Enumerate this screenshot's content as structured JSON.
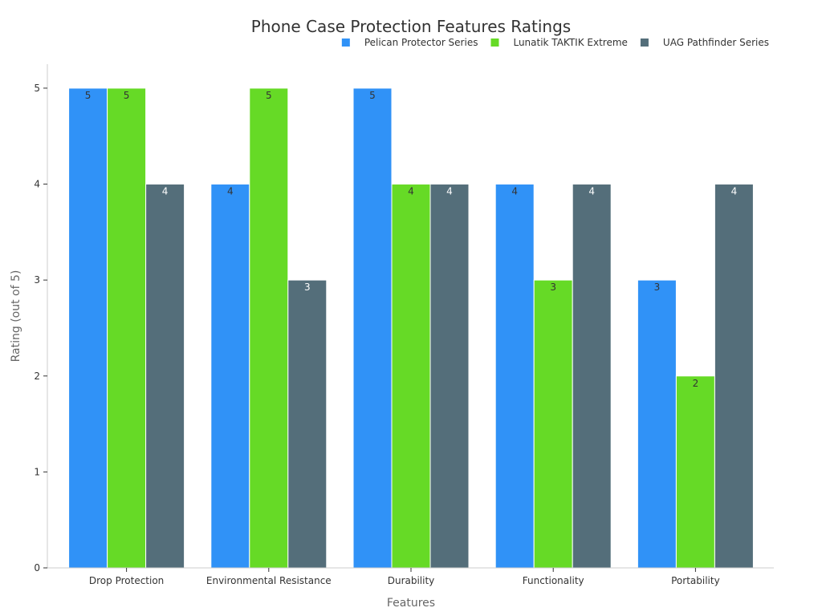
{
  "chart_data": {
    "type": "bar",
    "title": "Phone Case Protection Features Ratings",
    "xlabel": "Features",
    "ylabel": "Rating (out of 5)",
    "ylim": [
      0,
      5.25
    ],
    "yticks": [
      "0",
      "1",
      "2",
      "3",
      "4",
      "5"
    ],
    "categories": [
      "Drop Protection",
      "Environmental Resistance",
      "Durability",
      "Functionality",
      "Portability"
    ],
    "series": [
      {
        "name": "Pelican Protector Series",
        "color": "#3092F7",
        "label_color": "#333333",
        "values": [
          5,
          4,
          5,
          4,
          3
        ]
      },
      {
        "name": "Lunatik TAKTIK Extreme",
        "color": "#66DA26",
        "label_color": "#333333",
        "values": [
          5,
          5,
          4,
          3,
          2
        ]
      },
      {
        "name": "UAG Pathfinder Series",
        "color": "#546E7A",
        "label_color": "#ffffff",
        "values": [
          4,
          3,
          4,
          4,
          4
        ]
      }
    ],
    "legend_position": "top-right",
    "grid": false
  }
}
